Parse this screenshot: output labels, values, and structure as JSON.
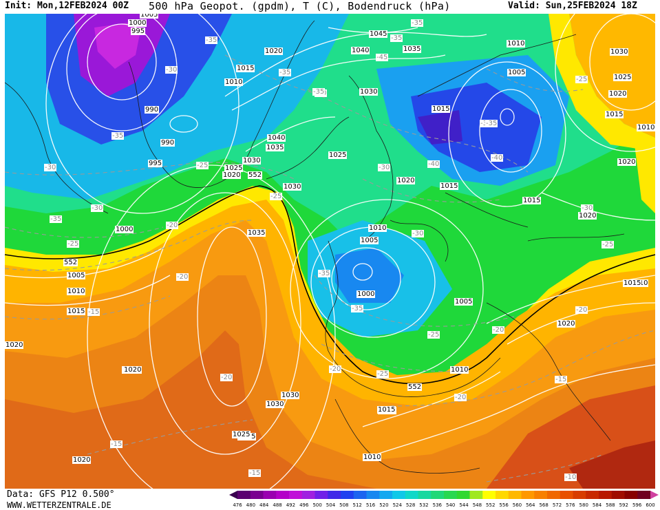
{
  "header": {
    "init": "Init: Mon,12FEB2024 00Z",
    "title": "500 hPa Geopot. (gpdm), T (C), Bodendruck (hPa)",
    "valid": "Valid: Sun,25FEB2024 18Z"
  },
  "footer": {
    "data_source": "Data: GFS P12 0.500°",
    "website": "WWW.WETTERZENTRALE.DE"
  },
  "legend": {
    "ticks": [
      "476",
      "480",
      "484",
      "488",
      "492",
      "496",
      "500",
      "504",
      "508",
      "512",
      "516",
      "520",
      "524",
      "528",
      "532",
      "536",
      "540",
      "544",
      "548",
      "552",
      "556",
      "560",
      "564",
      "568",
      "572",
      "576",
      "580",
      "584",
      "588",
      "592",
      "596",
      "600"
    ],
    "colors": [
      "#3a0050",
      "#5a0070",
      "#7a0090",
      "#9a00b0",
      "#b400c8",
      "#c010d8",
      "#a020e0",
      "#7020e8",
      "#4028e8",
      "#2040f0",
      "#1c64f0",
      "#1888f0",
      "#14a8f0",
      "#10c8e8",
      "#10d8c8",
      "#18d8a0",
      "#20d878",
      "#28d850",
      "#30d830",
      "#a0e820",
      "#ffff00",
      "#ffd800",
      "#ffb800",
      "#ff9800",
      "#f88000",
      "#f06800",
      "#e85000",
      "#d83c00",
      "#c82800",
      "#b81800",
      "#a00c00",
      "#880000",
      "#700020",
      "#d040a0"
    ]
  },
  "pressure_labels": [
    {
      "t": "1005"
    },
    {
      "t": "1000"
    },
    {
      "t": "995"
    },
    {
      "t": "990"
    },
    {
      "t": "990"
    },
    {
      "t": "995"
    },
    {
      "t": "1000"
    },
    {
      "t": "1020"
    },
    {
      "t": "1015"
    },
    {
      "t": "1010"
    },
    {
      "t": "1040"
    },
    {
      "t": "1035"
    },
    {
      "t": "1030"
    },
    {
      "t": "1025"
    },
    {
      "t": "1020"
    },
    {
      "t": "1030"
    },
    {
      "t": "1045"
    },
    {
      "t": "1040"
    },
    {
      "t": "1035"
    },
    {
      "t": "1030"
    },
    {
      "t": "1025"
    },
    {
      "t": "1020"
    },
    {
      "t": "1015"
    },
    {
      "t": "1015"
    },
    {
      "t": "1010"
    },
    {
      "t": "1005"
    },
    {
      "t": "1015"
    },
    {
      "t": "1010"
    },
    {
      "t": "1005"
    },
    {
      "t": "1000"
    },
    {
      "t": "1005"
    },
    {
      "t": "1035"
    },
    {
      "t": "1030"
    },
    {
      "t": "1025"
    },
    {
      "t": "1020"
    },
    {
      "t": "1015"
    },
    {
      "t": "1010"
    },
    {
      "t": "1005"
    },
    {
      "t": "1015"
    },
    {
      "t": "1010"
    },
    {
      "t": "1020"
    },
    {
      "t": "1020"
    },
    {
      "t": "1030"
    },
    {
      "t": "1025"
    },
    {
      "t": "1020"
    },
    {
      "t": "1015"
    },
    {
      "t": "1010"
    },
    {
      "t": "1010"
    },
    {
      "t": "1030"
    },
    {
      "t": "1025"
    },
    {
      "t": "1020"
    },
    {
      "t": "1015"
    },
    {
      "t": "1010"
    },
    {
      "t": "1020"
    },
    {
      "t": "1020"
    },
    {
      "t": "1015"
    },
    {
      "t": "1020"
    }
  ],
  "temp_labels": [
    {
      "t": "-35"
    },
    {
      "t": "-30"
    },
    {
      "t": "-35"
    },
    {
      "t": "-30"
    },
    {
      "t": "-35"
    },
    {
      "t": "-30"
    },
    {
      "t": "-25"
    },
    {
      "t": "-35"
    },
    {
      "t": "-25"
    },
    {
      "t": "-20"
    },
    {
      "t": "-35"
    },
    {
      "t": "-35"
    },
    {
      "t": "-45"
    },
    {
      "t": "-35"
    },
    {
      "t": "-35"
    },
    {
      "t": "-30"
    },
    {
      "t": "-40"
    },
    {
      "t": "-35"
    },
    {
      "t": "-40"
    },
    {
      "t": "-25"
    },
    {
      "t": "-30"
    },
    {
      "t": "-35"
    },
    {
      "t": "-25"
    },
    {
      "t": "-30"
    },
    {
      "t": "-25"
    },
    {
      "t": "-30"
    },
    {
      "t": "-35"
    },
    {
      "t": "-25"
    },
    {
      "t": "-20"
    },
    {
      "t": "-20"
    },
    {
      "t": "-15"
    },
    {
      "t": "-20"
    },
    {
      "t": "-15"
    },
    {
      "t": "-20"
    },
    {
      "t": "-15"
    },
    {
      "t": "-15"
    },
    {
      "t": "-20"
    },
    {
      "t": "-20"
    },
    {
      "t": "-25"
    },
    {
      "t": "-10"
    }
  ],
  "height_labels": [
    {
      "t": "552"
    },
    {
      "t": "552"
    },
    {
      "t": "552"
    }
  ]
}
